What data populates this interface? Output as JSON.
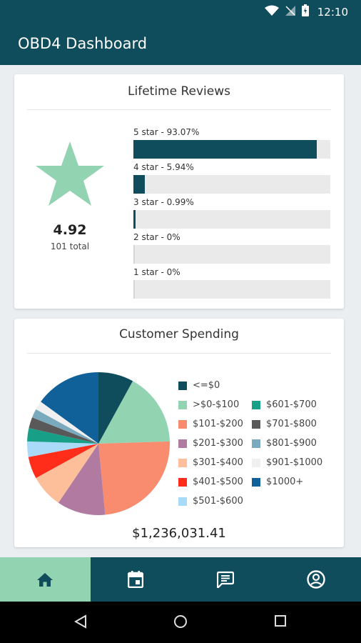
{
  "status": {
    "time": "12:10"
  },
  "app": {
    "title": "OBD4 Dashboard"
  },
  "reviews": {
    "title": "Lifetime Reviews",
    "average": "4.92",
    "total_label": "101 total",
    "bars": [
      {
        "label": "5 star - 93.07%",
        "fraction": 0.9307
      },
      {
        "label": "4 star - 5.94%",
        "fraction": 0.0594
      },
      {
        "label": "3 star - 0.99%",
        "fraction": 0.0099
      },
      {
        "label": "2 star - 0%",
        "fraction": 0
      },
      {
        "label": "1 star - 0%",
        "fraction": 0
      }
    ],
    "star_color": "#92d3b2",
    "bar_color": "#0f4c5c"
  },
  "spending": {
    "title": "Customer Spending",
    "total": "$1,236,031.41",
    "legend": [
      {
        "label": "<=$0",
        "color": "#0f4c5c"
      },
      {
        "label": ">$0-$100",
        "color": "#92d3b2"
      },
      {
        "label": "$101-$200",
        "color": "#f98b6f"
      },
      {
        "label": "$201-$300",
        "color": "#b07aa1"
      },
      {
        "label": "$301-$400",
        "color": "#fdbf9a"
      },
      {
        "label": "$401-$500",
        "color": "#ff2d1a"
      },
      {
        "label": "$501-$600",
        "color": "#a9daf7"
      },
      {
        "label": "$601-$700",
        "color": "#17a087"
      },
      {
        "label": "$701-$800",
        "color": "#595959"
      },
      {
        "label": "$801-$900",
        "color": "#79aabd"
      },
      {
        "label": "$901-$1000",
        "color": "#f0f0f0"
      },
      {
        "label": "$1000+",
        "color": "#10619a"
      }
    ]
  },
  "chart_data": {
    "type": "pie",
    "categories": [
      "<=$0",
      ">$0-$100",
      "$101-$200",
      "$201-$300",
      "$301-$400",
      "$401-$500",
      "$501-$600",
      "$601-$700",
      "$701-$800",
      "$801-$900",
      "$901-$1000",
      "$1000+"
    ],
    "values": [
      8,
      16.5,
      24,
      11,
      7.5,
      5,
      3.5,
      3,
      2.5,
      2,
      2,
      15
    ],
    "title": "Customer Spending"
  },
  "nav": {
    "items": [
      {
        "icon": "home-icon",
        "active": true
      },
      {
        "icon": "calendar-icon",
        "active": false
      },
      {
        "icon": "message-icon",
        "active": false
      },
      {
        "icon": "account-icon",
        "active": false
      }
    ]
  }
}
